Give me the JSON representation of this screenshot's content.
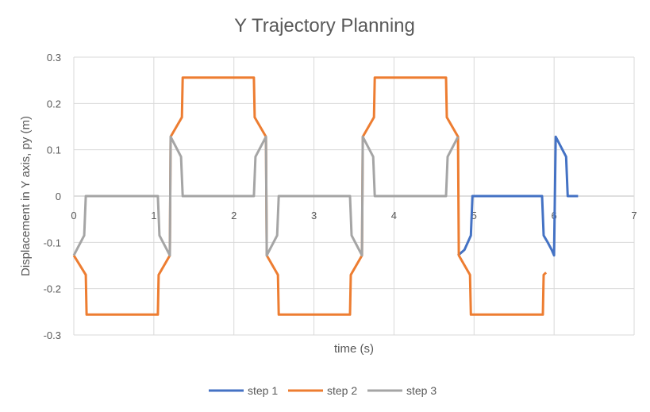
{
  "chart_data": {
    "type": "line",
    "title": "Y Trajectory Planning",
    "xlabel": "time (s)",
    "ylabel": "Displacement in Y axis, py (m)",
    "xlim": [
      0,
      7
    ],
    "ylim": [
      -0.3,
      0.3
    ],
    "x_ticks": [
      "0",
      "1",
      "2",
      "3",
      "4",
      "5",
      "6",
      "7"
    ],
    "y_ticks": [
      "0.3",
      "0.2",
      "0.1",
      "0",
      "-0.1",
      "-0.2",
      "-0.3"
    ],
    "grid": true,
    "legend_position": "bottom",
    "series": [
      {
        "name": "step 1",
        "color": "#4472c4",
        "points": [
          [
            4.8,
            -0.128
          ],
          [
            4.88,
            -0.116
          ],
          [
            4.96,
            -0.085
          ],
          [
            4.98,
            0
          ],
          [
            5.1,
            0
          ],
          [
            5.5,
            0
          ],
          [
            5.85,
            0
          ],
          [
            5.87,
            -0.085
          ],
          [
            5.92,
            -0.1
          ],
          [
            5.97,
            -0.116
          ],
          [
            6.0,
            -0.128
          ],
          [
            6.02,
            0.128
          ],
          [
            6.15,
            0.085
          ],
          [
            6.17,
            0
          ],
          [
            6.3,
            0
          ]
        ]
      },
      {
        "name": "step 2",
        "color": "#ed7d31",
        "points": [
          [
            0.0,
            -0.128
          ],
          [
            0.15,
            -0.17
          ],
          [
            0.16,
            -0.256
          ],
          [
            1.05,
            -0.256
          ],
          [
            1.06,
            -0.17
          ],
          [
            1.2,
            -0.128
          ],
          [
            1.21,
            0.128
          ],
          [
            1.35,
            0.17
          ],
          [
            1.36,
            0.256
          ],
          [
            2.25,
            0.256
          ],
          [
            2.26,
            0.17
          ],
          [
            2.4,
            0.128
          ],
          [
            2.41,
            -0.128
          ],
          [
            2.55,
            -0.17
          ],
          [
            2.56,
            -0.256
          ],
          [
            3.45,
            -0.256
          ],
          [
            3.46,
            -0.17
          ],
          [
            3.6,
            -0.128
          ],
          [
            3.61,
            0.128
          ],
          [
            3.75,
            0.17
          ],
          [
            3.76,
            0.256
          ],
          [
            4.65,
            0.256
          ],
          [
            4.66,
            0.17
          ],
          [
            4.8,
            0.128
          ],
          [
            4.81,
            -0.128
          ],
          [
            4.95,
            -0.17
          ],
          [
            4.96,
            -0.256
          ],
          [
            5.86,
            -0.256
          ],
          [
            5.87,
            -0.17
          ],
          [
            5.9,
            -0.165
          ]
        ]
      },
      {
        "name": "step 3",
        "color": "#a5a5a5",
        "points": [
          [
            0.0,
            -0.128
          ],
          [
            0.13,
            -0.085
          ],
          [
            0.15,
            0
          ],
          [
            0.5,
            0
          ],
          [
            1.05,
            0
          ],
          [
            1.07,
            -0.085
          ],
          [
            1.2,
            -0.128
          ],
          [
            1.21,
            0.128
          ],
          [
            1.34,
            0.085
          ],
          [
            1.36,
            0
          ],
          [
            2.25,
            0
          ],
          [
            2.27,
            0.085
          ],
          [
            2.4,
            0.128
          ],
          [
            2.41,
            -0.128
          ],
          [
            2.54,
            -0.085
          ],
          [
            2.56,
            0
          ],
          [
            3.45,
            0
          ],
          [
            3.47,
            -0.085
          ],
          [
            3.6,
            -0.128
          ],
          [
            3.61,
            0.128
          ],
          [
            3.74,
            0.085
          ],
          [
            3.76,
            0
          ],
          [
            4.65,
            0
          ],
          [
            4.67,
            0.085
          ],
          [
            4.8,
            0.128
          ]
        ]
      }
    ]
  }
}
